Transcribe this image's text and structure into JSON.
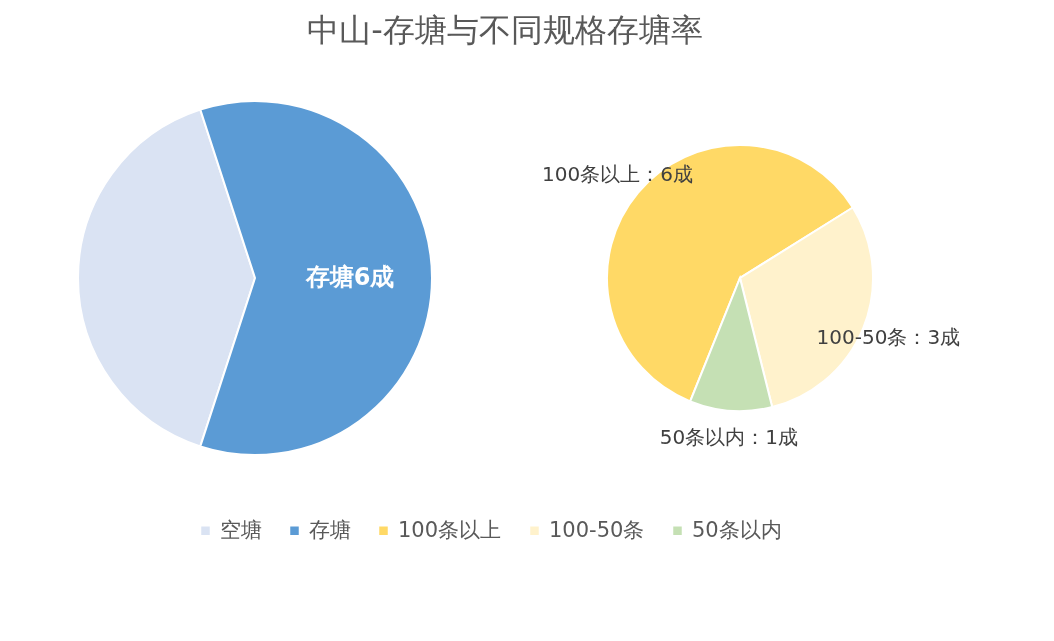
{
  "chart_data": [
    {
      "type": "pie",
      "title": "中山-存塘与不同规格存塘率",
      "categories": [
        "空塘",
        "存塘"
      ],
      "values": [
        4,
        6
      ],
      "colors": [
        "#dae3f3",
        "#5b9bd5"
      ],
      "value_labels": [
        null,
        "存塘6成"
      ],
      "legend": "bottom"
    },
    {
      "type": "pie",
      "categories": [
        "100条以上",
        "100-50条",
        "50条以内"
      ],
      "values": [
        6,
        3,
        1
      ],
      "colors": [
        "#ffd966",
        "#fff2cc",
        "#c5e0b4"
      ],
      "value_labels": [
        "100条以上：6成",
        "100-50条：3成",
        "50条以内：1成"
      ],
      "legend": "bottom"
    }
  ]
}
